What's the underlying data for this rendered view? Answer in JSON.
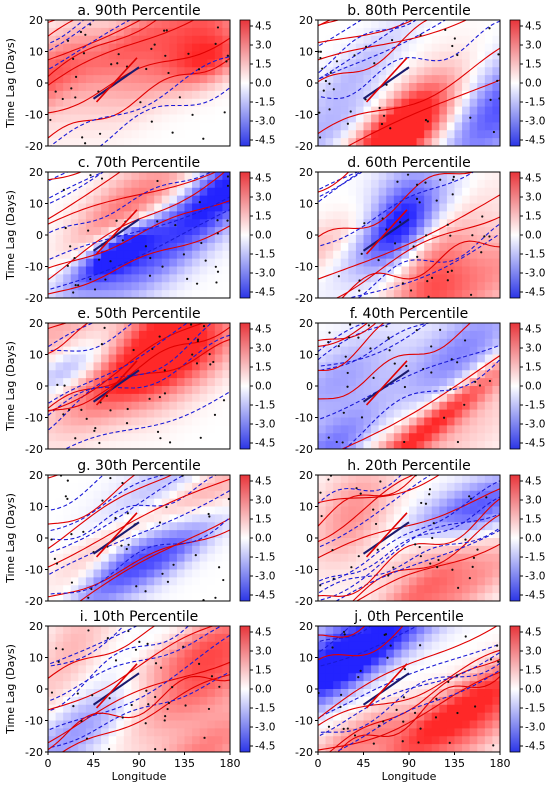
{
  "figure": {
    "ylabel": "Time Lag (Days)",
    "xlabel": "Longitude",
    "x_ticks": [
      "0",
      "45",
      "90",
      "135",
      "180"
    ],
    "y_ticks": [
      "20",
      "10",
      "0",
      "-10",
      "-20"
    ],
    "colorbar_ticks": [
      "4.5",
      "3.0",
      "1.5",
      "0.0",
      "-1.5",
      "-3.0",
      "-4.5"
    ],
    "colors": {
      "positive": "#e8343a",
      "negative": "#2b35e6",
      "contour_positive": "#e00000",
      "contour_negative": "#1a1ad6",
      "regression_line_dark": "#1a1a6e"
    }
  },
  "chart_data": [
    {
      "panel": "a",
      "title": "a. 90th Percentile",
      "type": "heatmap",
      "xlim": [
        0,
        180
      ],
      "ylim": [
        -20,
        20
      ],
      "clim": [
        -5,
        5
      ],
      "colormap": "bwr"
    },
    {
      "panel": "b",
      "title": "b. 80th Percentile",
      "type": "heatmap",
      "xlim": [
        0,
        180
      ],
      "ylim": [
        -20,
        20
      ],
      "clim": [
        -5,
        5
      ],
      "colormap": "bwr"
    },
    {
      "panel": "c",
      "title": "c. 70th Percentile",
      "type": "heatmap",
      "xlim": [
        0,
        180
      ],
      "ylim": [
        -20,
        20
      ],
      "clim": [
        -5,
        5
      ],
      "colormap": "bwr"
    },
    {
      "panel": "d",
      "title": "d. 60th Percentile",
      "type": "heatmap",
      "xlim": [
        0,
        180
      ],
      "ylim": [
        -20,
        20
      ],
      "clim": [
        -5,
        5
      ],
      "colormap": "bwr"
    },
    {
      "panel": "e",
      "title": "e. 50th Percentile",
      "type": "heatmap",
      "xlim": [
        0,
        180
      ],
      "ylim": [
        -20,
        20
      ],
      "clim": [
        -5,
        5
      ],
      "colormap": "bwr"
    },
    {
      "panel": "f",
      "title": "f. 40th Percentile",
      "type": "heatmap",
      "xlim": [
        0,
        180
      ],
      "ylim": [
        -20,
        20
      ],
      "clim": [
        -5,
        5
      ],
      "colormap": "bwr"
    },
    {
      "panel": "g",
      "title": "g. 30th Percentile",
      "type": "heatmap",
      "xlim": [
        0,
        180
      ],
      "ylim": [
        -20,
        20
      ],
      "clim": [
        -5,
        5
      ],
      "colormap": "bwr"
    },
    {
      "panel": "h",
      "title": "h. 20th Percentile",
      "type": "heatmap",
      "xlim": [
        0,
        180
      ],
      "ylim": [
        -20,
        20
      ],
      "clim": [
        -5,
        5
      ],
      "colormap": "bwr"
    },
    {
      "panel": "i",
      "title": "i. 10th Percentile",
      "type": "heatmap",
      "xlim": [
        0,
        180
      ],
      "ylim": [
        -20,
        20
      ],
      "clim": [
        -5,
        5
      ],
      "colormap": "bwr"
    },
    {
      "panel": "j",
      "title": "j. 0th Percentile",
      "type": "heatmap",
      "xlim": [
        0,
        180
      ],
      "ylim": [
        -20,
        20
      ],
      "clim": [
        -5,
        5
      ],
      "colormap": "bwr"
    }
  ]
}
